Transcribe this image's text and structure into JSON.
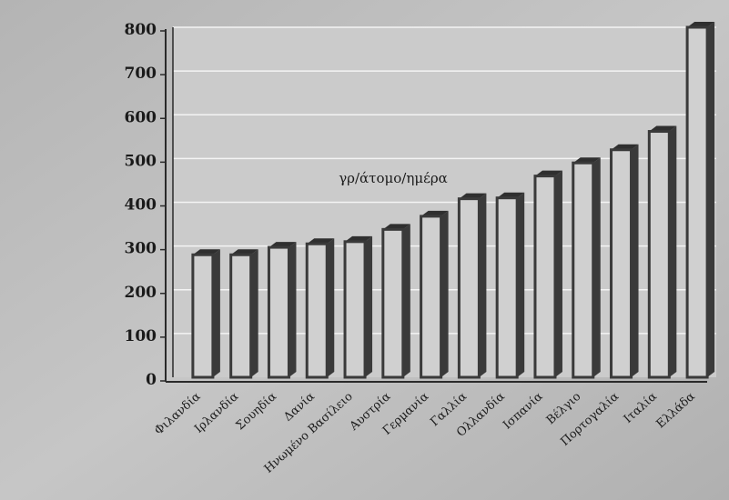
{
  "chart_data": {
    "type": "bar",
    "annotation": "γρ/άτομο/ημέρα",
    "categories": [
      "Φιλανδία",
      "Ιρλανδία",
      "Σουηδία",
      "Δανία",
      "Ηνωμένο Βασίλειο",
      "Αυστρία",
      "Γερμανία",
      "Γαλλία",
      "Ολλανδία",
      "Ισπανία",
      "Βέλγιο",
      "Πορτογαλία",
      "Ιταλία",
      "Ελλάδα"
    ],
    "values": [
      280,
      280,
      297,
      305,
      310,
      338,
      368,
      408,
      410,
      460,
      490,
      520,
      562,
      800
    ],
    "ylim": [
      0,
      800
    ],
    "yticks": [
      0,
      100,
      200,
      300,
      400,
      500,
      600,
      700,
      800
    ],
    "grid": true,
    "colors": {
      "bar_face": "#d0d0d0",
      "bar_side": "#3a3a3a",
      "plot_bg": "#cbcbcb",
      "gridline": "#f4f4f4",
      "axis": "#2a2a2a"
    }
  }
}
